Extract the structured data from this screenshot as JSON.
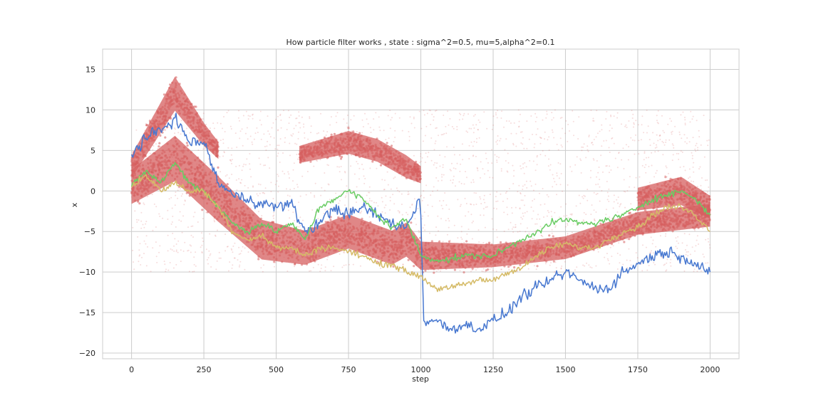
{
  "chart_data": {
    "type": "line",
    "title": "How particle filter works , state : sigma^2=0.5, mu=5,alpha^2=0.1",
    "xlabel": "step",
    "ylabel": "x",
    "xlim": [
      -100,
      2100
    ],
    "ylim": [
      -20.7,
      17.5
    ],
    "xticks": [
      0,
      250,
      500,
      750,
      1000,
      1250,
      1500,
      1750,
      2000
    ],
    "yticks": [
      15,
      10,
      5,
      0,
      -5,
      -10,
      -15,
      -20
    ],
    "grid": true,
    "colors": {
      "particles": "#d65f5f",
      "true_state": "#4878d0",
      "estimate_green": "#6acc64",
      "estimate_yellow": "#d5bb67",
      "grid": "#cccccc",
      "frame": "#cccccc"
    },
    "particles": {
      "description": "particle cloud",
      "uniform_spread_range": [
        -10,
        10
      ],
      "bands": [
        {
          "x": [
            0,
            150,
            300,
            450,
            600,
            750,
            900,
            950,
            1000,
            1250,
            1500,
            1750,
            2000
          ],
          "center": [
            0.5,
            4,
            -1,
            -6,
            -7,
            -5,
            -7,
            -6,
            -8,
            -8,
            -7,
            -4,
            -3
          ],
          "halfwidth": [
            3,
            4,
            4,
            3.5,
            3,
            3,
            3,
            3,
            2.5,
            2,
            2,
            2,
            2
          ]
        },
        {
          "x": [
            0,
            150,
            250,
            300
          ],
          "center": [
            3,
            12,
            7,
            5
          ],
          "halfwidth": [
            2,
            3,
            2,
            1.5
          ]
        },
        {
          "x": [
            580,
            750,
            850,
            950,
            1000
          ],
          "center": [
            4.5,
            6,
            5,
            3,
            2
          ],
          "halfwidth": [
            1.5,
            2,
            2,
            2,
            1.5
          ]
        },
        {
          "x": [
            1750,
            1900,
            2000
          ],
          "center": [
            -1,
            0,
            -2
          ],
          "halfwidth": [
            2,
            2.5,
            2
          ]
        }
      ]
    },
    "series": [
      {
        "key": "true_state",
        "color": "#4878d0",
        "x": [
          0,
          50,
          100,
          150,
          200,
          250,
          300,
          350,
          400,
          450,
          500,
          550,
          600,
          650,
          700,
          750,
          800,
          850,
          900,
          950,
          995,
          1000,
          1010,
          1050,
          1100,
          1150,
          1200,
          1250,
          1300,
          1350,
          1400,
          1450,
          1500,
          1550,
          1600,
          1650,
          1700,
          1750,
          1800,
          1850,
          1900,
          1950,
          2000
        ],
        "y": [
          4.5,
          6.5,
          7.5,
          9,
          6,
          6,
          1,
          -0.5,
          -1,
          -1.5,
          -2,
          -1.5,
          -5,
          -4,
          -2,
          -3,
          -2,
          -3,
          -4,
          -4.5,
          -1,
          -3,
          -16,
          -16,
          -17,
          -16.5,
          -17,
          -16,
          -15,
          -13,
          -12,
          -11,
          -10,
          -11,
          -12,
          -12,
          -10,
          -9,
          -8,
          -7.5,
          -8,
          -9,
          -10
        ]
      },
      {
        "key": "estimate_green",
        "color": "#6acc64",
        "x": [
          0,
          50,
          100,
          150,
          200,
          250,
          300,
          350,
          400,
          450,
          500,
          550,
          600,
          650,
          700,
          750,
          800,
          850,
          900,
          950,
          1000,
          1050,
          1100,
          1150,
          1200,
          1250,
          1300,
          1350,
          1400,
          1450,
          1500,
          1550,
          1600,
          1650,
          1700,
          1750,
          1800,
          1850,
          1900,
          1950,
          2000
        ],
        "y": [
          0.5,
          2.5,
          1,
          3.5,
          1,
          0,
          -2,
          -4,
          -5,
          -4,
          -5,
          -4,
          -6,
          -2,
          -1,
          0,
          -1,
          -3,
          -4.5,
          -3.5,
          -8,
          -8.5,
          -8.5,
          -8,
          -8,
          -8,
          -7,
          -6,
          -5,
          -4,
          -3.5,
          -4,
          -4,
          -3.5,
          -3,
          -2,
          -1,
          -0.5,
          0,
          -1,
          -3
        ]
      },
      {
        "key": "estimate_yellow",
        "color": "#d5bb67",
        "x": [
          0,
          50,
          100,
          150,
          200,
          250,
          300,
          350,
          400,
          450,
          500,
          550,
          600,
          650,
          700,
          750,
          800,
          850,
          900,
          950,
          1000,
          1050,
          1100,
          1150,
          1200,
          1250,
          1300,
          1350,
          1400,
          1450,
          1500,
          1550,
          1600,
          1650,
          1700,
          1750,
          1800,
          1850,
          1900,
          1950,
          2000
        ],
        "y": [
          0.5,
          2,
          0,
          1,
          0,
          0,
          -2,
          -5,
          -6,
          -5.5,
          -7,
          -7,
          -8,
          -7,
          -7,
          -7.5,
          -8,
          -9,
          -9,
          -10,
          -10.5,
          -12,
          -12,
          -11.5,
          -11,
          -11,
          -10,
          -9.5,
          -8,
          -7,
          -6.5,
          -7,
          -7,
          -6,
          -5,
          -4.5,
          -3,
          -2,
          -2,
          -3,
          -5
        ]
      }
    ]
  }
}
